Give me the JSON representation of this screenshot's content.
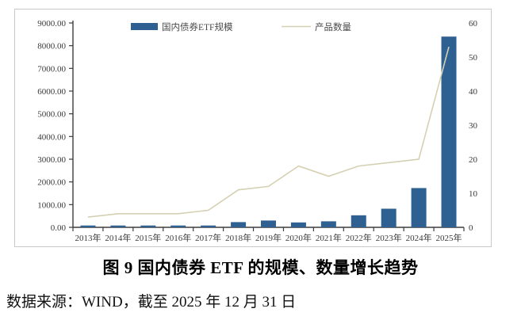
{
  "figure": {
    "title": "图 9 国内债券 ETF 的规模、数量增长趋势",
    "source_note": "数据来源：WIND，截至 2025 年 12 月 31 日"
  },
  "chart_data": {
    "type": "combo_bar_line",
    "title": "",
    "categories": [
      "2013年",
      "2014年",
      "2015年",
      "2016年",
      "2017年",
      "2018年",
      "2019年",
      "2020年",
      "2021年",
      "2022年",
      "2023年",
      "2024年",
      "2025年"
    ],
    "series": [
      {
        "name": "国内债券ETF规模",
        "type": "bar",
        "axis": "left",
        "color": "#2E6191",
        "values": [
          80,
          80,
          80,
          80,
          80,
          230,
          300,
          215,
          265,
          530,
          820,
          1730,
          8400
        ]
      },
      {
        "name": "产品数量",
        "type": "line",
        "axis": "right",
        "color": "#D6D0B2",
        "values": [
          3,
          4,
          4,
          4,
          5,
          11,
          12,
          18,
          15,
          18,
          19,
          20,
          53
        ]
      }
    ],
    "left_axis": {
      "min": 0,
      "max": 9000,
      "step": 1000,
      "tick_labels": [
        "0.00",
        "1000.00",
        "2000.00",
        "3000.00",
        "4000.00",
        "5000.00",
        "6000.00",
        "7000.00",
        "8000.00",
        "9000.00"
      ]
    },
    "right_axis": {
      "min": 0,
      "max": 60,
      "step": 10,
      "tick_labels": [
        "0",
        "10",
        "20",
        "30",
        "40",
        "50",
        "60"
      ]
    },
    "legend": {
      "position": "top",
      "items": [
        "国内债券ETF规模",
        "产品数量"
      ]
    },
    "grid": false,
    "colors": {
      "axis_line": "#3d3d3d",
      "tick_text": "#3a3a3a",
      "legend_text": "#4a4a4a",
      "frame_border": "#c9c9c9"
    }
  }
}
